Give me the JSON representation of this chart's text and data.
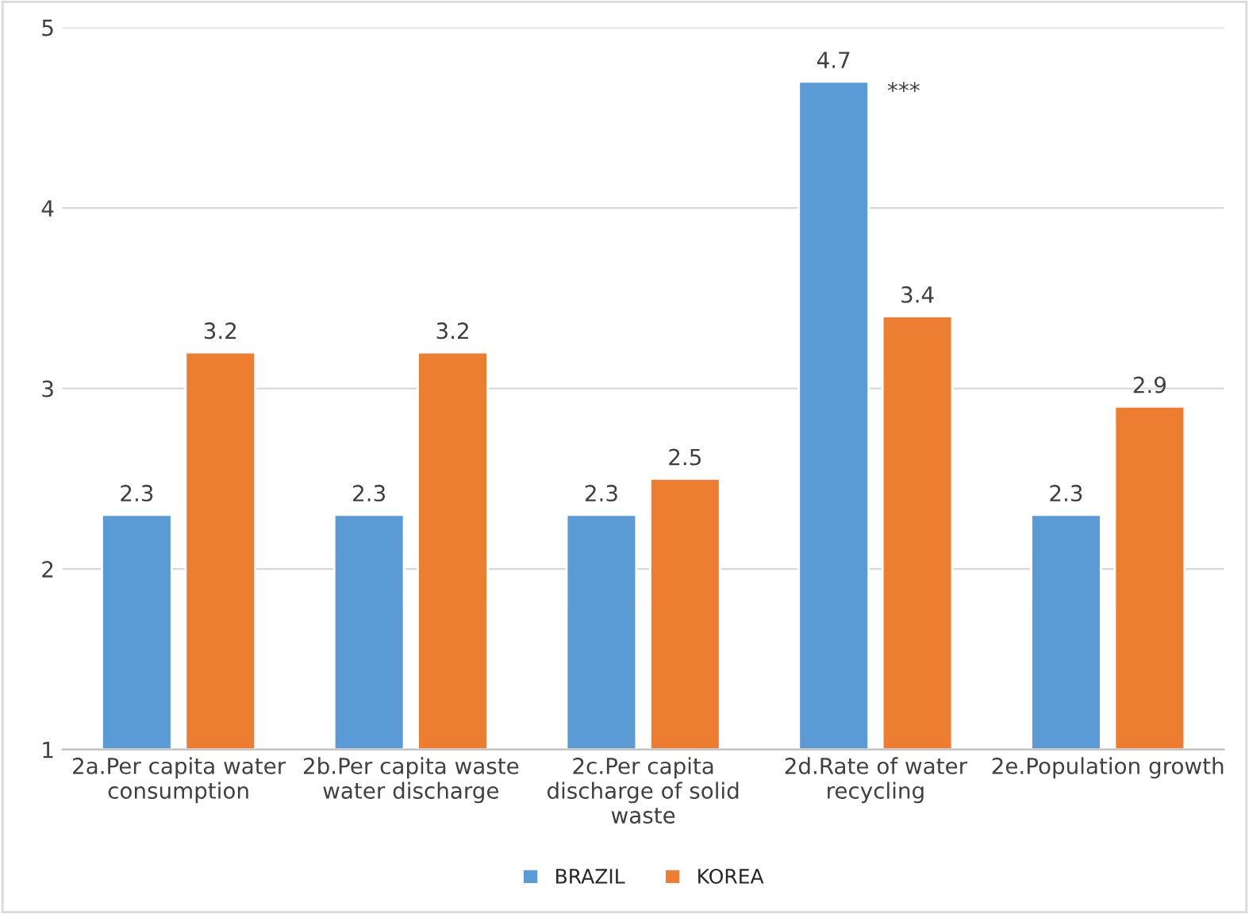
{
  "chart_data": {
    "type": "bar",
    "categories": [
      "2a.Per capita water\nconsumption",
      "2b.Per capita waste\nwater discharge",
      "2c.Per capita\ndischarge of solid\nwaste",
      "2d.Rate of water\nrecycling",
      "2e.Population growth"
    ],
    "series": [
      {
        "name": "BRAZIL",
        "color": "#5b9bd5",
        "values": [
          2.3,
          2.3,
          2.3,
          4.7,
          2.3
        ]
      },
      {
        "name": "KOREA",
        "color": "#ed7d31",
        "values": [
          3.2,
          3.2,
          2.5,
          3.4,
          2.9
        ]
      }
    ],
    "ylim": [
      1,
      5
    ],
    "yticks": [
      1,
      2,
      3,
      4,
      5
    ],
    "grid": "y",
    "legend": "bottom",
    "data_labels": true,
    "annotations": [
      {
        "text": "***",
        "x": "2d.Rate of water\nrecycling",
        "y": 4.7
      }
    ]
  }
}
